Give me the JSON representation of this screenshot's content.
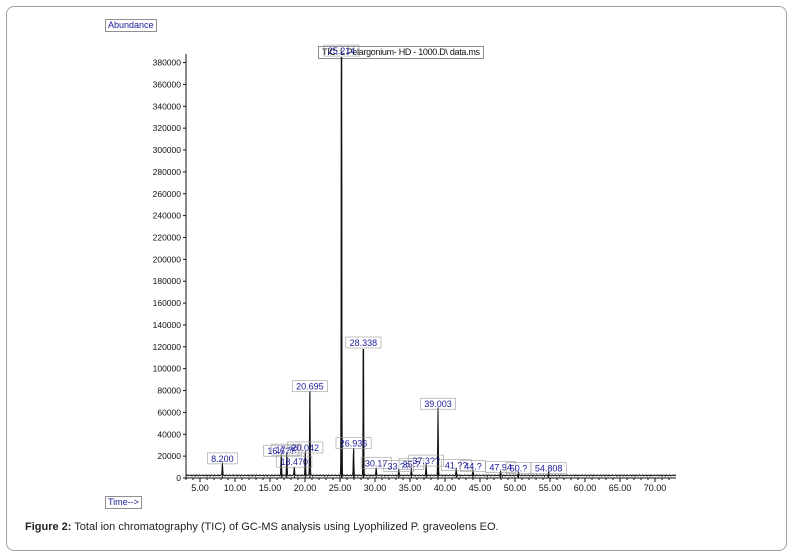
{
  "chart_data": {
    "type": "line",
    "title": "TIC: L Pelargonium- HD - 1000.D\\ data.ms",
    "ylabel": "Abundance",
    "xlabel": "Time-->",
    "xlim": [
      3.0,
      73.0
    ],
    "ylim": [
      0,
      386000
    ],
    "x_ticks": [
      5,
      10,
      15,
      20,
      25,
      30,
      35,
      40,
      45,
      50,
      55,
      60,
      65,
      70
    ],
    "x_tick_labels": [
      "5.00",
      "10.00",
      "15.00",
      "20.00",
      "25.00",
      "30.00",
      "35.00",
      "40.00",
      "45.00",
      "50.00",
      "55.00",
      "60.00",
      "65.00",
      "70.00"
    ],
    "y_ticks": [
      0,
      20000,
      40000,
      60000,
      80000,
      100000,
      120000,
      140000,
      160000,
      180000,
      200000,
      220000,
      240000,
      260000,
      280000,
      300000,
      320000,
      340000,
      360000,
      380000
    ],
    "y_tick_labels": [
      "0",
      "20000",
      "40000",
      "60000",
      "80000",
      "100000",
      "120000",
      "140000",
      "160000",
      "180000",
      "200000",
      "220000",
      "240000",
      "260000",
      "280000",
      "300000",
      "320000",
      "340000",
      "360000",
      "380000"
    ],
    "series": [
      {
        "peaks": [
          {
            "x": 8.2,
            "y": 12000,
            "label": "8.200"
          },
          {
            "x": 16.6,
            "y": 19000,
            "label": "16.6??"
          },
          {
            "x": 17.4,
            "y": 20000,
            "label": "17.??"
          },
          {
            "x": 18.47,
            "y": 9000,
            "label": "18.470"
          },
          {
            "x": 20.042,
            "y": 22000,
            "label": "20.042"
          },
          {
            "x": 20.695,
            "y": 78000,
            "label": "20.695"
          },
          {
            "x": 25.214,
            "y": 385000,
            "label": "25.214"
          },
          {
            "x": 26.936,
            "y": 26000,
            "label": "26.936"
          },
          {
            "x": 28.338,
            "y": 118000,
            "label": "28.338"
          },
          {
            "x": 30.17,
            "y": 8000,
            "label": "30.17"
          },
          {
            "x": 33.4,
            "y": 5000,
            "label": "33.??"
          },
          {
            "x": 35.2,
            "y": 7000,
            "label": "35.?"
          },
          {
            "x": 37.3,
            "y": 10000,
            "label": "37.3??"
          },
          {
            "x": 39.003,
            "y": 62000,
            "label": "39.003"
          },
          {
            "x": 41.6,
            "y": 6000,
            "label": "41.??"
          },
          {
            "x": 44.0,
            "y": 5000,
            "label": "44.?"
          },
          {
            "x": 47.94,
            "y": 4000,
            "label": "47.94"
          },
          {
            "x": 50.5,
            "y": 3000,
            "label": "50.?"
          },
          {
            "x": 54.808,
            "y": 3000,
            "label": "54.808"
          }
        ]
      }
    ]
  },
  "caption": {
    "prefix": "Figure 2:",
    "text": " Total ion chromatography (TIC) of GC-MS analysis using Lyophilized P. graveolens EO."
  }
}
